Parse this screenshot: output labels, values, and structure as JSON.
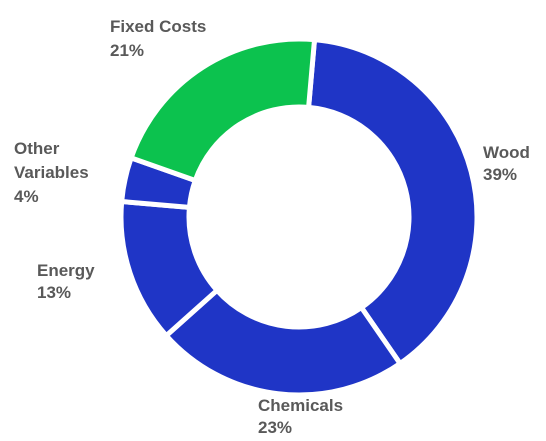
{
  "chart_data": {
    "type": "donut",
    "colors": {
      "dark_blue": "#1F35C6",
      "green": "#0CC24E"
    },
    "slices": [
      {
        "label": "Wood",
        "percent_label": "39%",
        "value": 39,
        "color": "#1F35C6"
      },
      {
        "label": "Chemicals",
        "percent_label": "23%",
        "value": 23,
        "color": "#1F35C6"
      },
      {
        "label": "Energy",
        "percent_label": "13%",
        "value": 13,
        "color": "#1F35C6"
      },
      {
        "label": "Other Variables",
        "label_lines": [
          "Other",
          "Variables"
        ],
        "percent_label": "4%",
        "value": 4,
        "color": "#1F35C6"
      },
      {
        "label": "Fixed Costs",
        "percent_label": "21%",
        "value": 21,
        "color": "#0CC24E"
      }
    ]
  }
}
